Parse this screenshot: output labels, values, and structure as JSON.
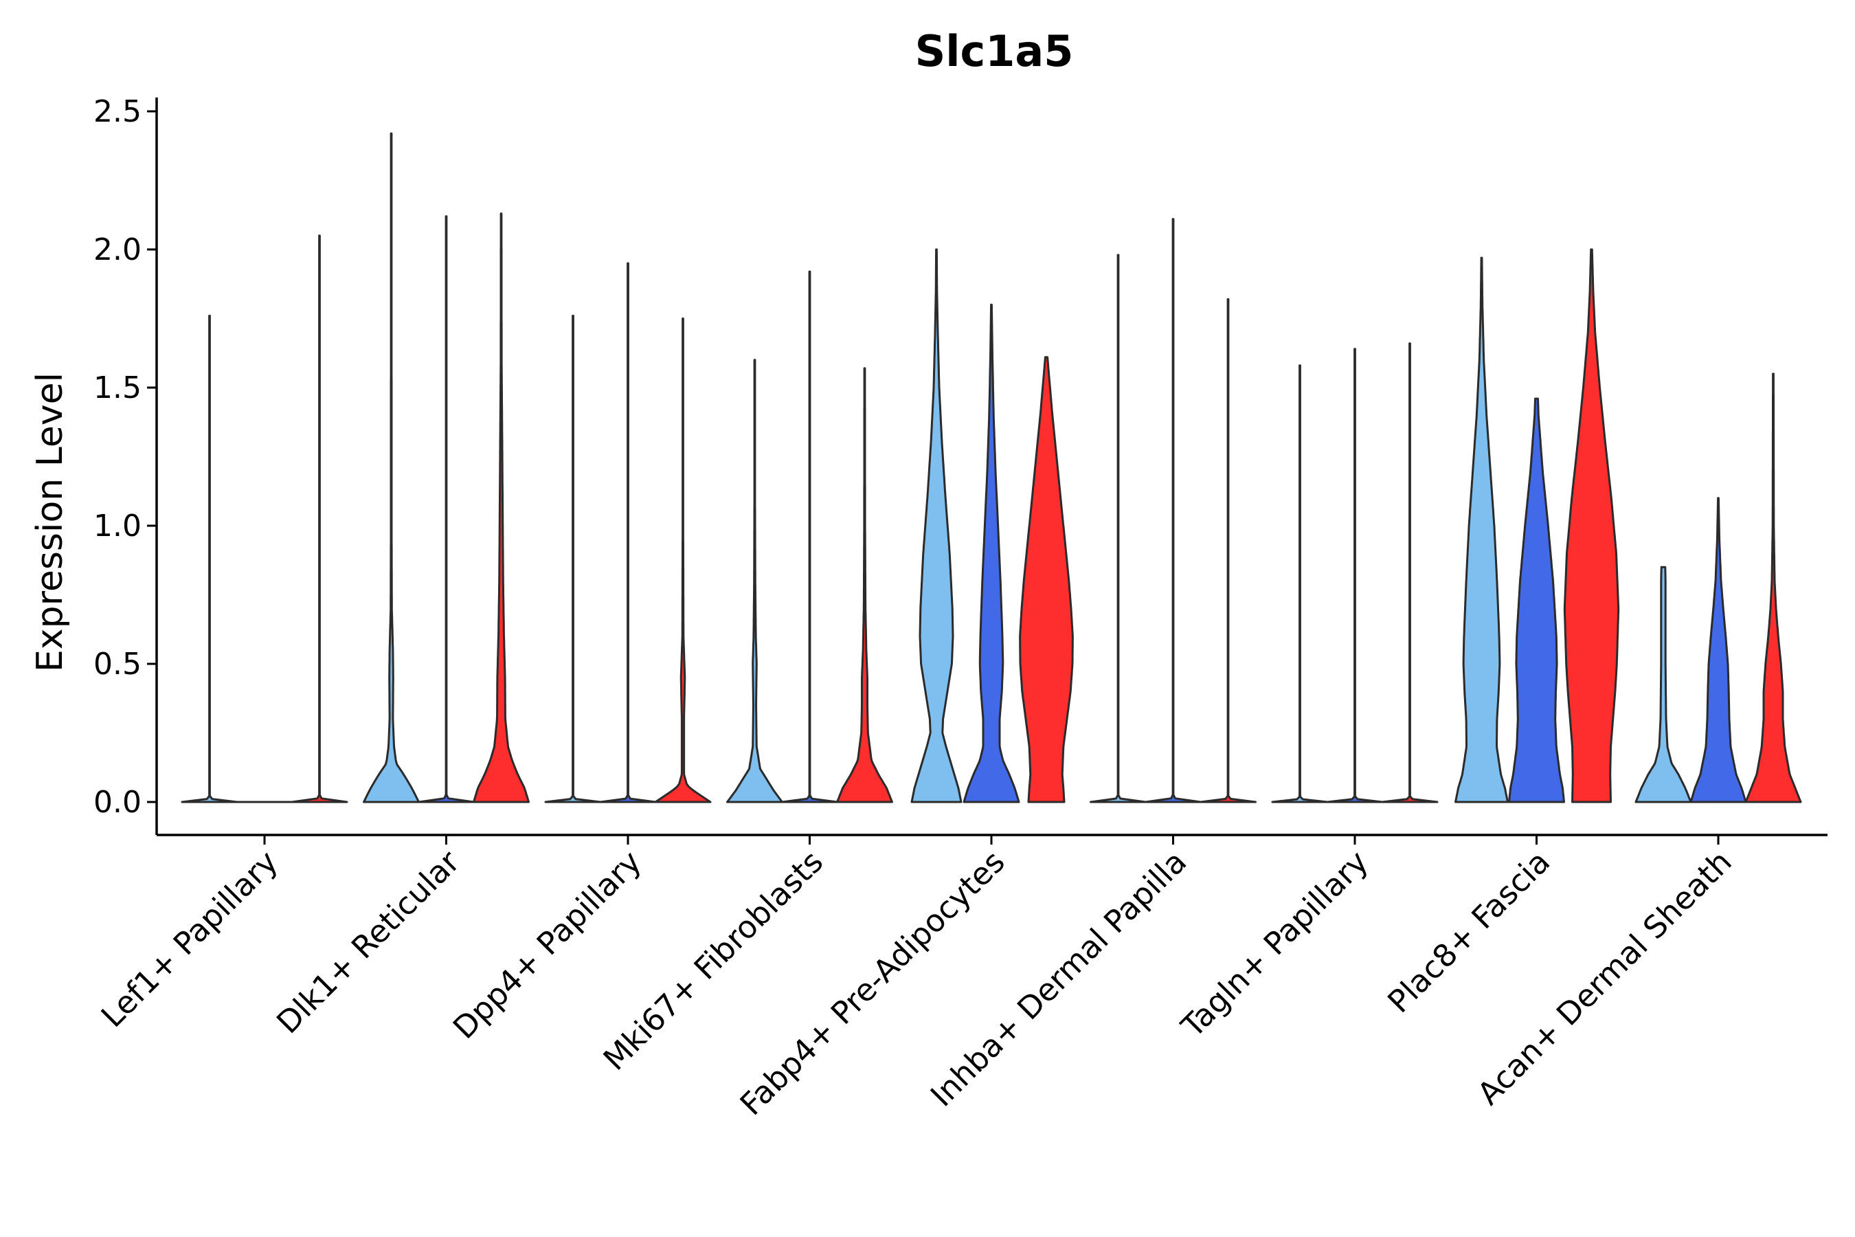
{
  "chart_data": {
    "type": "violin",
    "title": "Slc1a5",
    "xlabel": "",
    "ylabel": "Expression Level",
    "ylim": [
      -0.12,
      2.55
    ],
    "yticks": [
      0.0,
      0.5,
      1.0,
      1.5,
      2.0,
      2.5
    ],
    "ytick_labels": [
      "0.0",
      "0.5",
      "1.0",
      "1.5",
      "2.0",
      "2.5"
    ],
    "grid": false,
    "legend": "none",
    "groups_per_category": 3,
    "group_colors": [
      "#7fbfef",
      "#4169e8",
      "#ff2e2e"
    ],
    "categories": [
      "Lef1+ Papillary",
      "Dlk1+ Reticular",
      "Dpp4+ Papillary",
      "Mki67+ Fibroblasts",
      "Fabp4+ Pre-Adipocytes",
      "Inhba+ Dermal Papilla",
      "Tagln+ Papillary",
      "Plac8+ Fascia",
      "Acan+ Dermal Sheath"
    ],
    "violins": [
      {
        "category": "Lef1+ Papillary",
        "group": 0,
        "max": 1.76,
        "profile": [
          [
            0,
            1
          ],
          [
            0.005,
            0.15
          ],
          [
            0.02,
            0.01
          ],
          [
            1.76,
            0.01
          ]
        ]
      },
      {
        "category": "Lef1+ Papillary",
        "group": 1,
        "max": 0.0,
        "profile": [
          [
            0,
            1
          ],
          [
            0.005,
            0.15
          ],
          [
            0.01,
            0
          ]
        ]
      },
      {
        "category": "Lef1+ Papillary",
        "group": 2,
        "max": 2.05,
        "profile": [
          [
            0,
            1
          ],
          [
            0.005,
            0.15
          ],
          [
            0.02,
            0.01
          ],
          [
            2.05,
            0.01
          ]
        ]
      },
      {
        "category": "Dlk1+ Reticular",
        "group": 0,
        "max": 2.42,
        "profile": [
          [
            0,
            1
          ],
          [
            0.05,
            0.75
          ],
          [
            0.1,
            0.45
          ],
          [
            0.14,
            0.18
          ],
          [
            0.2,
            0.1
          ],
          [
            0.3,
            0.06
          ],
          [
            0.45,
            0.07
          ],
          [
            0.55,
            0.06
          ],
          [
            0.7,
            0.02
          ],
          [
            1.0,
            0.012
          ],
          [
            2.42,
            0.01
          ]
        ]
      },
      {
        "category": "Dlk1+ Reticular",
        "group": 1,
        "max": 2.12,
        "profile": [
          [
            0,
            1
          ],
          [
            0.005,
            0.15
          ],
          [
            0.02,
            0.01
          ],
          [
            2.12,
            0.01
          ]
        ]
      },
      {
        "category": "Dlk1+ Reticular",
        "group": 2,
        "max": 2.13,
        "profile": [
          [
            0,
            1
          ],
          [
            0.05,
            0.85
          ],
          [
            0.1,
            0.6
          ],
          [
            0.15,
            0.4
          ],
          [
            0.2,
            0.25
          ],
          [
            0.3,
            0.15
          ],
          [
            0.45,
            0.14
          ],
          [
            0.6,
            0.1
          ],
          [
            0.8,
            0.07
          ],
          [
            1.1,
            0.05
          ],
          [
            1.4,
            0.03
          ],
          [
            1.6,
            0.015
          ],
          [
            2.13,
            0.01
          ]
        ]
      },
      {
        "category": "Dpp4+ Papillary",
        "group": 0,
        "max": 1.76,
        "profile": [
          [
            0,
            1
          ],
          [
            0.005,
            0.15
          ],
          [
            0.02,
            0.01
          ],
          [
            1.76,
            0.01
          ]
        ]
      },
      {
        "category": "Dpp4+ Papillary",
        "group": 1,
        "max": 1.95,
        "profile": [
          [
            0,
            1
          ],
          [
            0.005,
            0.15
          ],
          [
            0.02,
            0.01
          ],
          [
            1.95,
            0.01
          ]
        ]
      },
      {
        "category": "Dpp4+ Papillary",
        "group": 2,
        "max": 1.75,
        "profile": [
          [
            0,
            1
          ],
          [
            0.02,
            0.7
          ],
          [
            0.04,
            0.4
          ],
          [
            0.06,
            0.15
          ],
          [
            0.1,
            0.04
          ],
          [
            0.3,
            0.04
          ],
          [
            0.45,
            0.07
          ],
          [
            0.6,
            0.02
          ],
          [
            1.0,
            0.01
          ],
          [
            1.75,
            0.01
          ]
        ]
      },
      {
        "category": "Mki67+ Fibroblasts",
        "group": 0,
        "max": 1.6,
        "profile": [
          [
            0,
            1
          ],
          [
            0.04,
            0.7
          ],
          [
            0.08,
            0.45
          ],
          [
            0.12,
            0.2
          ],
          [
            0.2,
            0.07
          ],
          [
            0.35,
            0.05
          ],
          [
            0.5,
            0.07
          ],
          [
            0.6,
            0.04
          ],
          [
            0.8,
            0.02
          ],
          [
            1.1,
            0.01
          ],
          [
            1.6,
            0.01
          ]
        ]
      },
      {
        "category": "Mki67+ Fibroblasts",
        "group": 1,
        "max": 1.92,
        "profile": [
          [
            0,
            1
          ],
          [
            0.005,
            0.15
          ],
          [
            0.02,
            0.01
          ],
          [
            1.92,
            0.01
          ]
        ]
      },
      {
        "category": "Mki67+ Fibroblasts",
        "group": 2,
        "max": 1.57,
        "profile": [
          [
            0,
            1
          ],
          [
            0.05,
            0.8
          ],
          [
            0.1,
            0.5
          ],
          [
            0.15,
            0.25
          ],
          [
            0.25,
            0.12
          ],
          [
            0.35,
            0.1
          ],
          [
            0.45,
            0.1
          ],
          [
            0.55,
            0.06
          ],
          [
            0.7,
            0.03
          ],
          [
            1.0,
            0.015
          ],
          [
            1.57,
            0.01
          ]
        ]
      },
      {
        "category": "Fabp4+ Pre-Adipocytes",
        "group": 0,
        "max": 2.0,
        "profile": [
          [
            0,
            0.9
          ],
          [
            0.05,
            0.8
          ],
          [
            0.1,
            0.65
          ],
          [
            0.2,
            0.35
          ],
          [
            0.25,
            0.22
          ],
          [
            0.3,
            0.24
          ],
          [
            0.4,
            0.4
          ],
          [
            0.5,
            0.56
          ],
          [
            0.6,
            0.6
          ],
          [
            0.7,
            0.58
          ],
          [
            0.9,
            0.48
          ],
          [
            1.1,
            0.33
          ],
          [
            1.3,
            0.2
          ],
          [
            1.5,
            0.1
          ],
          [
            1.7,
            0.05
          ],
          [
            1.85,
            0.02
          ],
          [
            2.0,
            0.01
          ]
        ]
      },
      {
        "category": "Fabp4+ Pre-Adipocytes",
        "group": 1,
        "max": 1.8,
        "profile": [
          [
            0,
            1
          ],
          [
            0.05,
            0.85
          ],
          [
            0.1,
            0.65
          ],
          [
            0.15,
            0.42
          ],
          [
            0.2,
            0.3
          ],
          [
            0.3,
            0.3
          ],
          [
            0.4,
            0.38
          ],
          [
            0.5,
            0.42
          ],
          [
            0.6,
            0.4
          ],
          [
            0.8,
            0.33
          ],
          [
            1.0,
            0.24
          ],
          [
            1.2,
            0.15
          ],
          [
            1.4,
            0.08
          ],
          [
            1.6,
            0.04
          ],
          [
            1.8,
            0.01
          ]
        ]
      },
      {
        "category": "Fabp4+ Pre-Adipocytes",
        "group": 2,
        "max": 1.61,
        "profile": [
          [
            0,
            0.65
          ],
          [
            0.05,
            0.62
          ],
          [
            0.1,
            0.58
          ],
          [
            0.2,
            0.62
          ],
          [
            0.3,
            0.75
          ],
          [
            0.4,
            0.88
          ],
          [
            0.5,
            0.95
          ],
          [
            0.6,
            0.96
          ],
          [
            0.7,
            0.9
          ],
          [
            0.8,
            0.82
          ],
          [
            1.0,
            0.62
          ],
          [
            1.2,
            0.42
          ],
          [
            1.4,
            0.22
          ],
          [
            1.55,
            0.09
          ],
          [
            1.61,
            0.04
          ]
        ]
      },
      {
        "category": "Inhba+ Dermal Papilla",
        "group": 0,
        "max": 1.98,
        "profile": [
          [
            0,
            1
          ],
          [
            0.005,
            0.15
          ],
          [
            0.02,
            0.01
          ],
          [
            1.98,
            0.01
          ]
        ]
      },
      {
        "category": "Inhba+ Dermal Papilla",
        "group": 1,
        "max": 2.11,
        "profile": [
          [
            0,
            1
          ],
          [
            0.005,
            0.15
          ],
          [
            0.02,
            0.01
          ],
          [
            2.11,
            0.01
          ]
        ]
      },
      {
        "category": "Inhba+ Dermal Papilla",
        "group": 2,
        "max": 1.82,
        "profile": [
          [
            0,
            1
          ],
          [
            0.005,
            0.15
          ],
          [
            0.02,
            0.01
          ],
          [
            1.82,
            0.01
          ]
        ]
      },
      {
        "category": "Tagln+ Papillary",
        "group": 0,
        "max": 1.58,
        "profile": [
          [
            0,
            1
          ],
          [
            0.005,
            0.15
          ],
          [
            0.02,
            0.01
          ],
          [
            1.58,
            0.01
          ]
        ]
      },
      {
        "category": "Tagln+ Papillary",
        "group": 1,
        "max": 1.64,
        "profile": [
          [
            0,
            1
          ],
          [
            0.005,
            0.15
          ],
          [
            0.02,
            0.01
          ],
          [
            1.64,
            0.01
          ]
        ]
      },
      {
        "category": "Tagln+ Papillary",
        "group": 2,
        "max": 1.66,
        "profile": [
          [
            0,
            1
          ],
          [
            0.005,
            0.15
          ],
          [
            0.02,
            0.01
          ],
          [
            1.66,
            0.01
          ]
        ]
      },
      {
        "category": "Plac8+ Fascia",
        "group": 0,
        "max": 1.97,
        "profile": [
          [
            0,
            0.95
          ],
          [
            0.05,
            0.85
          ],
          [
            0.1,
            0.7
          ],
          [
            0.2,
            0.55
          ],
          [
            0.3,
            0.56
          ],
          [
            0.4,
            0.62
          ],
          [
            0.5,
            0.66
          ],
          [
            0.6,
            0.64
          ],
          [
            0.8,
            0.56
          ],
          [
            1.0,
            0.46
          ],
          [
            1.2,
            0.32
          ],
          [
            1.4,
            0.18
          ],
          [
            1.6,
            0.08
          ],
          [
            1.8,
            0.03
          ],
          [
            1.97,
            0.01
          ]
        ]
      },
      {
        "category": "Plac8+ Fascia",
        "group": 1,
        "max": 1.46,
        "profile": [
          [
            0,
            1
          ],
          [
            0.05,
            0.95
          ],
          [
            0.1,
            0.85
          ],
          [
            0.2,
            0.72
          ],
          [
            0.3,
            0.68
          ],
          [
            0.4,
            0.7
          ],
          [
            0.5,
            0.74
          ],
          [
            0.6,
            0.72
          ],
          [
            0.8,
            0.6
          ],
          [
            1.0,
            0.42
          ],
          [
            1.2,
            0.22
          ],
          [
            1.4,
            0.07
          ],
          [
            1.46,
            0.05
          ]
        ]
      },
      {
        "category": "Plac8+ Fascia",
        "group": 2,
        "max": 2.0,
        "profile": [
          [
            0,
            0.7
          ],
          [
            0.1,
            0.68
          ],
          [
            0.2,
            0.7
          ],
          [
            0.3,
            0.78
          ],
          [
            0.4,
            0.86
          ],
          [
            0.5,
            0.92
          ],
          [
            0.7,
            0.98
          ],
          [
            0.9,
            0.9
          ],
          [
            1.1,
            0.72
          ],
          [
            1.3,
            0.5
          ],
          [
            1.5,
            0.3
          ],
          [
            1.7,
            0.13
          ],
          [
            1.85,
            0.06
          ],
          [
            2.0,
            0.02
          ]
        ]
      },
      {
        "category": "Acan+ Dermal Sheath",
        "group": 0,
        "max": 0.85,
        "profile": [
          [
            0,
            1
          ],
          [
            0.05,
            0.8
          ],
          [
            0.1,
            0.55
          ],
          [
            0.14,
            0.3
          ],
          [
            0.2,
            0.15
          ],
          [
            0.3,
            0.1
          ],
          [
            0.5,
            0.08
          ],
          [
            0.7,
            0.08
          ],
          [
            0.8,
            0.08
          ],
          [
            0.85,
            0.07
          ]
        ]
      },
      {
        "category": "Acan+ Dermal Sheath",
        "group": 1,
        "max": 1.1,
        "profile": [
          [
            0,
            1
          ],
          [
            0.05,
            0.85
          ],
          [
            0.1,
            0.65
          ],
          [
            0.2,
            0.45
          ],
          [
            0.3,
            0.4
          ],
          [
            0.4,
            0.38
          ],
          [
            0.5,
            0.35
          ],
          [
            0.6,
            0.27
          ],
          [
            0.7,
            0.18
          ],
          [
            0.8,
            0.1
          ],
          [
            0.95,
            0.04
          ],
          [
            1.1,
            0.01
          ]
        ]
      },
      {
        "category": "Acan+ Dermal Sheath",
        "group": 2,
        "max": 1.55,
        "profile": [
          [
            0,
            1
          ],
          [
            0.05,
            0.8
          ],
          [
            0.1,
            0.6
          ],
          [
            0.2,
            0.42
          ],
          [
            0.3,
            0.35
          ],
          [
            0.4,
            0.35
          ],
          [
            0.5,
            0.28
          ],
          [
            0.6,
            0.18
          ],
          [
            0.7,
            0.1
          ],
          [
            0.8,
            0.05
          ],
          [
            1.0,
            0.02
          ],
          [
            1.55,
            0.01
          ]
        ]
      }
    ]
  }
}
